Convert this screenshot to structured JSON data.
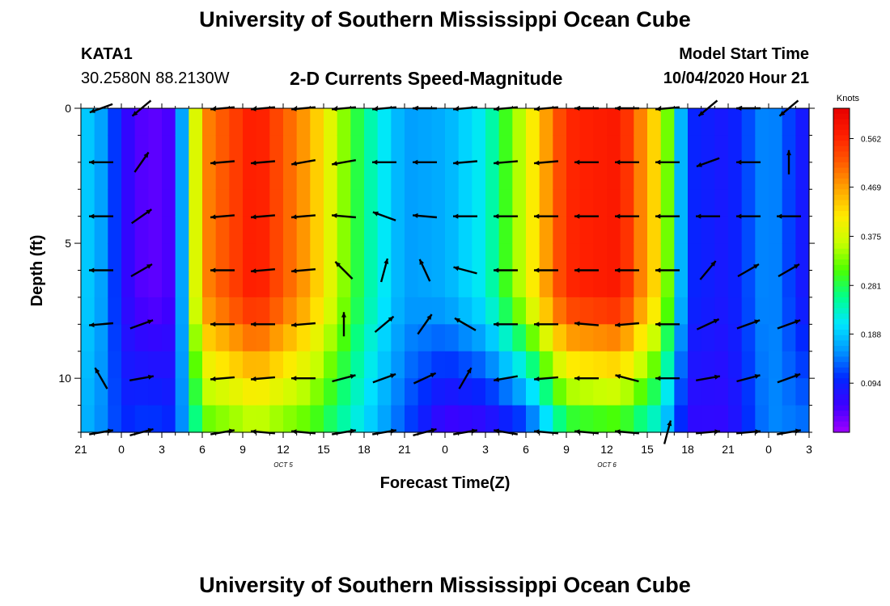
{
  "header": {
    "title_top": "University of Southern Mississippi Ocean Cube",
    "station_id": "KATA1",
    "coords": "30.2580N 88.2130W",
    "plot_title": "2-D Currents Speed-Magnitude",
    "model_start_label": "Model Start Time",
    "model_start_value": "10/04/2020 Hour 21",
    "title_bottom": "University of Southern Mississippi Ocean Cube"
  },
  "chart_data": {
    "type": "heatmap",
    "title": "2-D Currents Speed-Magnitude",
    "xlabel": "Forecast Time(Z)",
    "ylabel": "Depth (ft)",
    "x_ticks": [
      "21",
      "0",
      "3",
      "6",
      "9",
      "12",
      "15",
      "18",
      "21",
      "0",
      "3",
      "6",
      "9",
      "12",
      "15",
      "18",
      "21",
      "0",
      "3"
    ],
    "x_date_labels": [
      {
        "at_tick": 5,
        "text": "OCT 5"
      },
      {
        "at_tick": 13,
        "text": "OCT 6"
      }
    ],
    "x_range_hours": [
      0,
      54
    ],
    "y_ticks": [
      "0",
      "5",
      "10"
    ],
    "y_range_ft": [
      0,
      12
    ],
    "colorbar": {
      "unit": "Knots",
      "labels": [
        "0.562",
        "0.469",
        "0.375",
        "0.281",
        "0.188",
        "0.094"
      ],
      "min": 0.0,
      "max": 0.62,
      "colors": [
        "#a000ff",
        "#3c00ff",
        "#0028ff",
        "#0096ff",
        "#00e6ff",
        "#00ff8c",
        "#4cff00",
        "#c8ff00",
        "#ffeb00",
        "#ffa500",
        "#ff5a00",
        "#ff1e00",
        "#e60000"
      ]
    },
    "depth_levels_ft": [
      0,
      1,
      2,
      3,
      4,
      5,
      6,
      7,
      8,
      9,
      10,
      11,
      12
    ],
    "speed_profile": [
      {
        "hour": 0,
        "surface": 0.2,
        "deep": 0.18
      },
      {
        "hour": 2,
        "surface": 0.15,
        "deep": 0.14
      },
      {
        "hour": 3,
        "surface": 0.07,
        "deep": 0.1
      },
      {
        "hour": 5,
        "surface": 0.03,
        "deep": 0.12
      },
      {
        "hour": 7,
        "surface": 0.05,
        "deep": 0.1
      },
      {
        "hour": 8,
        "surface": 0.28,
        "deep": 0.2
      },
      {
        "hour": 9,
        "surface": 0.48,
        "deep": 0.3
      },
      {
        "hour": 13,
        "surface": 0.58,
        "deep": 0.34
      },
      {
        "hour": 17,
        "surface": 0.46,
        "deep": 0.3
      },
      {
        "hour": 21,
        "surface": 0.26,
        "deep": 0.2
      },
      {
        "hour": 24,
        "surface": 0.16,
        "deep": 0.12
      },
      {
        "hour": 27,
        "surface": 0.17,
        "deep": 0.04
      },
      {
        "hour": 30,
        "surface": 0.22,
        "deep": 0.05
      },
      {
        "hour": 33,
        "surface": 0.38,
        "deep": 0.09
      },
      {
        "hour": 36,
        "surface": 0.56,
        "deep": 0.26
      },
      {
        "hour": 40,
        "surface": 0.58,
        "deep": 0.28
      },
      {
        "hour": 43,
        "surface": 0.4,
        "deep": 0.2
      },
      {
        "hour": 45,
        "surface": 0.1,
        "deep": 0.06
      },
      {
        "hour": 48,
        "surface": 0.08,
        "deep": 0.06
      },
      {
        "hour": 51,
        "surface": 0.16,
        "deep": 0.15
      },
      {
        "hour": 54,
        "surface": 0.07,
        "deep": 0.14
      }
    ],
    "vectors": {
      "columns_hours": [
        1.5,
        4.5,
        10.5,
        13.5,
        16.5,
        19.5,
        22.5,
        25.5,
        28.5,
        31.5,
        34.5,
        37.5,
        40.5,
        43.5,
        46.5,
        49.5,
        52.5
      ],
      "rows_ft": [
        0,
        2,
        4,
        6,
        8,
        10,
        12
      ],
      "directions_deg": [
        [
          200,
          220,
          185,
          185,
          185,
          185,
          185,
          180,
          185,
          185,
          185,
          180,
          180,
          185,
          220,
          180,
          220
        ],
        [
          180,
          55,
          185,
          185,
          190,
          190,
          180,
          180,
          185,
          185,
          185,
          180,
          180,
          180,
          200,
          180,
          90
        ],
        [
          180,
          35,
          185,
          185,
          185,
          175,
          160,
          175,
          180,
          180,
          180,
          180,
          180,
          180,
          180,
          180,
          180
        ],
        [
          180,
          30,
          180,
          185,
          185,
          135,
          75,
          115,
          165,
          180,
          180,
          180,
          180,
          180,
          50,
          30,
          30
        ],
        [
          185,
          20,
          180,
          180,
          185,
          90,
          40,
          55,
          150,
          180,
          180,
          175,
          185,
          180,
          25,
          20,
          20
        ],
        [
          120,
          10,
          185,
          185,
          180,
          15,
          20,
          25,
          60,
          190,
          185,
          180,
          165,
          180,
          10,
          15,
          20
        ],
        [
          10,
          15,
          10,
          175,
          175,
          10,
          10,
          15,
          10,
          170,
          175,
          175,
          175,
          75,
          5,
          5,
          10
        ]
      ]
    }
  }
}
